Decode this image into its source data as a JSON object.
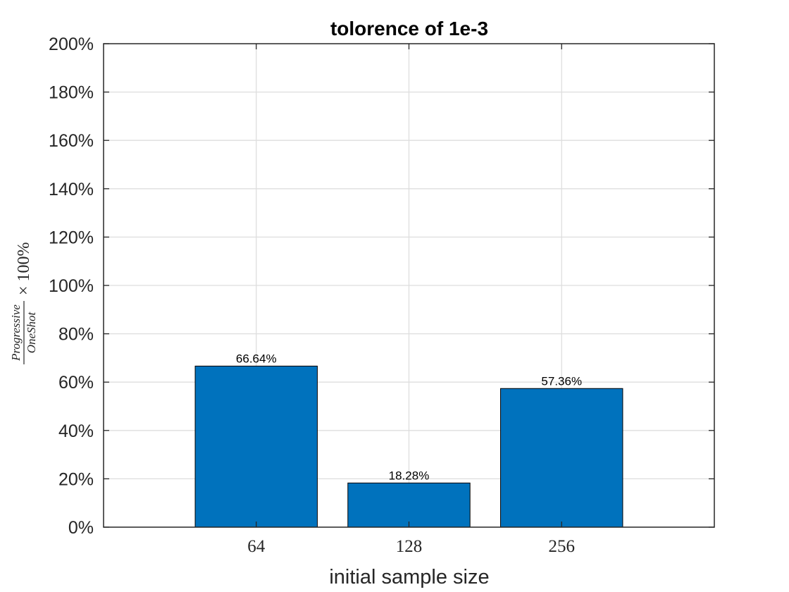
{
  "chart_data": {
    "type": "bar",
    "title": "tolorence of 1e-3",
    "xlabel": "initial sample size",
    "ylabel": {
      "numerator": "Progressive",
      "denominator": "OneShot",
      "suffix": "× 100%"
    },
    "categories": [
      "64",
      "128",
      "256"
    ],
    "values": [
      66.64,
      18.28,
      57.36
    ],
    "data_labels": [
      "66.64%",
      "18.28%",
      "57.36%"
    ],
    "ylim": [
      0,
      200
    ],
    "yticks": [
      0,
      20,
      40,
      60,
      80,
      100,
      120,
      140,
      160,
      180,
      200
    ],
    "ytick_labels": [
      "0%",
      "20%",
      "40%",
      "60%",
      "80%",
      "100%",
      "120%",
      "140%",
      "160%",
      "180%",
      "200%"
    ],
    "grid": true,
    "bar_color": "#0072BD"
  }
}
